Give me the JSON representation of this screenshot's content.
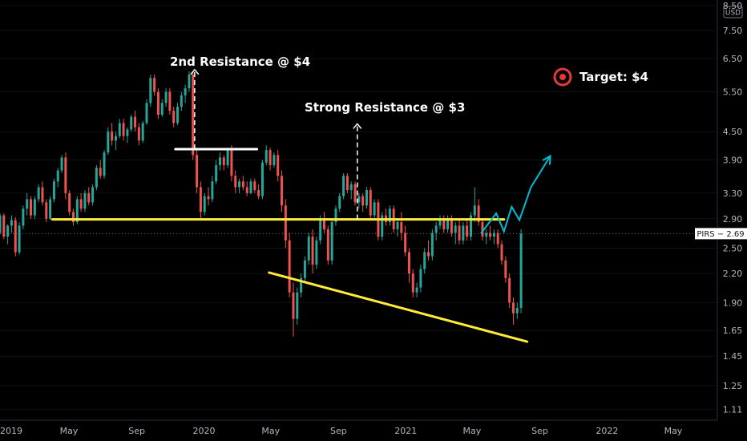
{
  "chart_data": {
    "type": "candlestick",
    "ticker": "PIRS",
    "currency": "USD",
    "scale": "log",
    "ylim": [
      1.05,
      8.6
    ],
    "y_ticks": [
      "8.50",
      "7.50",
      "6.50",
      "5.50",
      "4.50",
      "3.90",
      "3.30",
      "2.90",
      "2.50",
      "2.20",
      "1.90",
      "1.65",
      "1.45",
      "1.25",
      "1.11"
    ],
    "x_ticks": [
      "2019",
      "May",
      "Sep",
      "2020",
      "May",
      "Sep",
      "2021",
      "May",
      "Sep",
      "2022",
      "May"
    ],
    "xlim": [
      "2018-12-27",
      "2022-07-20"
    ],
    "x_tick_dates": [
      "2019-01-01",
      "2019-05-01",
      "2019-09-01",
      "2020-01-01",
      "2020-05-01",
      "2020-09-01",
      "2021-01-01",
      "2021-05-01",
      "2021-09-01",
      "2022-01-01",
      "2022-05-01"
    ],
    "last_price": {
      "label": "PIRS",
      "value": "2.69"
    },
    "candles_weekly": [
      [
        2.7,
        2.98,
        2.68,
        2.95
      ],
      [
        2.95,
        2.98,
        2.62,
        2.65
      ],
      [
        2.65,
        2.82,
        2.55,
        2.8
      ],
      [
        2.8,
        2.95,
        2.7,
        2.88
      ],
      [
        2.88,
        2.92,
        2.4,
        2.45
      ],
      [
        2.45,
        2.85,
        2.42,
        2.8
      ],
      [
        2.8,
        3.1,
        2.75,
        3.05
      ],
      [
        3.05,
        3.3,
        2.95,
        3.2
      ],
      [
        3.2,
        3.25,
        2.9,
        2.95
      ],
      [
        2.95,
        3.25,
        2.9,
        3.2
      ],
      [
        3.2,
        3.45,
        3.15,
        3.4
      ],
      [
        3.4,
        3.5,
        3.1,
        3.15
      ],
      [
        3.15,
        3.2,
        2.85,
        2.9
      ],
      [
        2.9,
        3.25,
        2.88,
        3.2
      ],
      [
        3.2,
        3.55,
        3.15,
        3.5
      ],
      [
        3.5,
        3.75,
        3.4,
        3.7
      ],
      [
        3.7,
        4.0,
        3.65,
        3.95
      ],
      [
        3.95,
        4.05,
        3.2,
        3.3
      ],
      [
        3.3,
        3.35,
        2.95,
        3.0
      ],
      [
        3.0,
        3.05,
        2.8,
        2.85
      ],
      [
        2.85,
        3.25,
        2.82,
        3.2
      ],
      [
        3.2,
        3.3,
        3.0,
        3.05
      ],
      [
        3.05,
        3.35,
        3.0,
        3.3
      ],
      [
        3.3,
        3.4,
        3.1,
        3.15
      ],
      [
        3.15,
        3.45,
        3.1,
        3.4
      ],
      [
        3.4,
        3.8,
        3.35,
        3.75
      ],
      [
        3.75,
        3.9,
        3.55,
        3.6
      ],
      [
        3.6,
        4.1,
        3.55,
        4.05
      ],
      [
        4.05,
        4.6,
        4.0,
        4.5
      ],
      [
        4.5,
        4.7,
        4.2,
        4.3
      ],
      [
        4.3,
        4.5,
        4.1,
        4.4
      ],
      [
        4.4,
        4.8,
        4.35,
        4.7
      ],
      [
        4.7,
        4.8,
        4.3,
        4.4
      ],
      [
        4.4,
        4.6,
        4.25,
        4.55
      ],
      [
        4.55,
        4.9,
        4.5,
        4.85
      ],
      [
        4.85,
        5.0,
        4.5,
        4.6
      ],
      [
        4.6,
        4.7,
        4.2,
        4.3
      ],
      [
        4.3,
        4.75,
        4.25,
        4.7
      ],
      [
        4.7,
        5.3,
        4.65,
        5.2
      ],
      [
        5.2,
        6.0,
        5.1,
        5.9
      ],
      [
        5.9,
        6.0,
        5.4,
        5.5
      ],
      [
        5.5,
        5.6,
        4.8,
        4.9
      ],
      [
        4.9,
        5.3,
        4.85,
        5.2
      ],
      [
        5.2,
        5.6,
        5.1,
        5.5
      ],
      [
        5.5,
        5.6,
        4.9,
        5.0
      ],
      [
        5.0,
        5.1,
        4.6,
        4.7
      ],
      [
        4.7,
        5.2,
        4.65,
        5.1
      ],
      [
        5.1,
        5.5,
        5.0,
        5.4
      ],
      [
        5.4,
        5.7,
        5.2,
        5.6
      ],
      [
        5.6,
        6.1,
        5.5,
        6.0
      ],
      [
        6.0,
        6.1,
        3.9,
        4.0
      ],
      [
        4.0,
        4.1,
        3.3,
        3.4
      ],
      [
        3.4,
        3.5,
        2.9,
        3.0
      ],
      [
        3.0,
        3.3,
        2.95,
        3.25
      ],
      [
        3.25,
        3.4,
        3.1,
        3.2
      ],
      [
        3.2,
        3.6,
        3.15,
        3.5
      ],
      [
        3.5,
        3.9,
        3.45,
        3.8
      ],
      [
        3.8,
        4.05,
        3.7,
        3.95
      ],
      [
        3.95,
        4.0,
        3.7,
        3.8
      ],
      [
        3.8,
        4.15,
        3.75,
        4.1
      ],
      [
        4.1,
        4.2,
        3.5,
        3.6
      ],
      [
        3.6,
        3.7,
        3.3,
        3.4
      ],
      [
        3.4,
        3.55,
        3.3,
        3.5
      ],
      [
        3.5,
        3.6,
        3.35,
        3.4
      ],
      [
        3.4,
        3.5,
        3.25,
        3.3
      ],
      [
        3.3,
        3.55,
        3.28,
        3.5
      ],
      [
        3.5,
        3.55,
        3.3,
        3.35
      ],
      [
        3.35,
        3.45,
        3.2,
        3.25
      ],
      [
        3.25,
        3.9,
        3.2,
        3.85
      ],
      [
        3.85,
        4.2,
        3.8,
        4.1
      ],
      [
        4.1,
        4.15,
        3.7,
        3.8
      ],
      [
        3.8,
        4.05,
        3.75,
        4.0
      ],
      [
        4.0,
        4.1,
        3.5,
        3.6
      ],
      [
        3.6,
        3.7,
        3.0,
        3.1
      ],
      [
        3.1,
        3.2,
        2.5,
        2.6
      ],
      [
        2.6,
        2.7,
        1.95,
        2.0
      ],
      [
        2.0,
        2.1,
        1.6,
        1.75
      ],
      [
        1.75,
        2.05,
        1.7,
        2.0
      ],
      [
        2.0,
        2.2,
        1.95,
        2.15
      ],
      [
        2.15,
        2.4,
        2.1,
        2.35
      ],
      [
        2.35,
        2.7,
        2.3,
        2.65
      ],
      [
        2.65,
        2.75,
        2.2,
        2.3
      ],
      [
        2.3,
        2.65,
        2.25,
        2.6
      ],
      [
        2.6,
        2.95,
        2.55,
        2.9
      ],
      [
        2.9,
        3.0,
        2.7,
        2.75
      ],
      [
        2.75,
        2.8,
        2.3,
        2.35
      ],
      [
        2.35,
        2.9,
        2.3,
        2.85
      ],
      [
        2.85,
        3.1,
        2.8,
        3.05
      ],
      [
        3.05,
        3.3,
        3.0,
        3.25
      ],
      [
        3.25,
        3.65,
        3.2,
        3.6
      ],
      [
        3.6,
        3.65,
        3.3,
        3.35
      ],
      [
        3.35,
        3.5,
        3.2,
        3.45
      ],
      [
        3.45,
        3.5,
        3.1,
        3.15
      ],
      [
        3.15,
        3.3,
        3.05,
        3.25
      ],
      [
        3.25,
        3.3,
        3.0,
        3.1
      ],
      [
        3.1,
        3.4,
        3.05,
        3.35
      ],
      [
        3.35,
        3.4,
        2.9,
        2.95
      ],
      [
        2.95,
        3.2,
        2.9,
        3.15
      ],
      [
        3.15,
        3.2,
        2.6,
        2.65
      ],
      [
        2.65,
        3.0,
        2.6,
        2.95
      ],
      [
        2.95,
        3.05,
        2.8,
        2.85
      ],
      [
        2.85,
        3.1,
        2.8,
        3.05
      ],
      [
        3.05,
        3.1,
        2.7,
        2.75
      ],
      [
        2.75,
        2.9,
        2.65,
        2.85
      ],
      [
        2.85,
        3.0,
        2.6,
        2.7
      ],
      [
        2.7,
        2.8,
        2.4,
        2.45
      ],
      [
        2.45,
        2.5,
        2.1,
        2.2
      ],
      [
        2.2,
        2.25,
        1.95,
        2.0
      ],
      [
        2.0,
        2.1,
        1.95,
        2.05
      ],
      [
        2.05,
        2.3,
        2.0,
        2.25
      ],
      [
        2.25,
        2.5,
        2.2,
        2.45
      ],
      [
        2.45,
        2.6,
        2.35,
        2.4
      ],
      [
        2.4,
        2.75,
        2.35,
        2.7
      ],
      [
        2.7,
        2.85,
        2.6,
        2.8
      ],
      [
        2.8,
        2.95,
        2.75,
        2.9
      ],
      [
        2.9,
        2.95,
        2.7,
        2.75
      ],
      [
        2.75,
        2.95,
        2.7,
        2.9
      ],
      [
        2.9,
        2.95,
        2.65,
        2.7
      ],
      [
        2.7,
        2.85,
        2.55,
        2.8
      ],
      [
        2.8,
        2.9,
        2.55,
        2.6
      ],
      [
        2.6,
        2.85,
        2.55,
        2.8
      ],
      [
        2.8,
        2.9,
        2.6,
        2.65
      ],
      [
        2.65,
        3.0,
        2.6,
        2.95
      ],
      [
        2.95,
        3.4,
        2.85,
        3.1
      ],
      [
        3.1,
        3.2,
        2.8,
        2.85
      ],
      [
        2.85,
        2.9,
        2.6,
        2.65
      ],
      [
        2.65,
        2.75,
        2.55,
        2.7
      ],
      [
        2.7,
        2.8,
        2.6,
        2.65
      ],
      [
        2.65,
        2.75,
        2.55,
        2.7
      ],
      [
        2.7,
        2.75,
        2.5,
        2.55
      ],
      [
        2.55,
        2.6,
        2.3,
        2.35
      ],
      [
        2.35,
        2.4,
        2.1,
        2.15
      ],
      [
        2.15,
        2.2,
        1.85,
        1.9
      ],
      [
        1.9,
        1.95,
        1.7,
        1.8
      ],
      [
        1.8,
        1.9,
        1.75,
        1.85
      ],
      [
        1.85,
        2.75,
        1.8,
        2.69
      ]
    ],
    "projection_path": [
      [
        "2021-05-17",
        2.69
      ],
      [
        "2021-06-14",
        2.98
      ],
      [
        "2021-06-28",
        2.72
      ],
      [
        "2021-07-12",
        3.08
      ],
      [
        "2021-07-26",
        2.88
      ],
      [
        "2021-08-16",
        3.4
      ],
      [
        "2021-09-20",
        3.98
      ]
    ],
    "lines": [
      {
        "name": "support",
        "color": "#ffeb3b",
        "from": [
          "2019-04-01",
          2.89
        ],
        "to": [
          "2021-06-28",
          2.89
        ]
      },
      {
        "name": "second-resistance",
        "color": "#ffffff",
        "from": [
          "2019-11-10",
          4.12
        ],
        "to": [
          "2020-04-06",
          4.12
        ]
      },
      {
        "name": "trendline",
        "color": "#ffeb3b",
        "from": [
          "2020-04-28",
          2.21
        ],
        "to": [
          "2021-08-09",
          1.56
        ]
      }
    ],
    "annotations": [
      {
        "name": "second-resistance-label",
        "text": "2nd Resistance @ $4"
      },
      {
        "name": "strong-resistance-label",
        "text": "Strong Resistance @ $3"
      },
      {
        "name": "target-label",
        "text": "Target: $4"
      }
    ],
    "arrows": [
      {
        "name": "second-resistance-arrow",
        "date": "2019-12-15",
        "from": 4.12,
        "to": 6.15
      },
      {
        "name": "strong-resistance-arrow",
        "date": "2020-10-05",
        "from": 2.89,
        "to": 4.68
      }
    ],
    "colors": {
      "background": "#000000",
      "up": "#26a69a",
      "down": "#ef5350",
      "projection": "#00bcd4",
      "target_icon": "#e53935",
      "axis_text": "#b2b5be",
      "price_tag_bg": "#ffffff"
    }
  }
}
